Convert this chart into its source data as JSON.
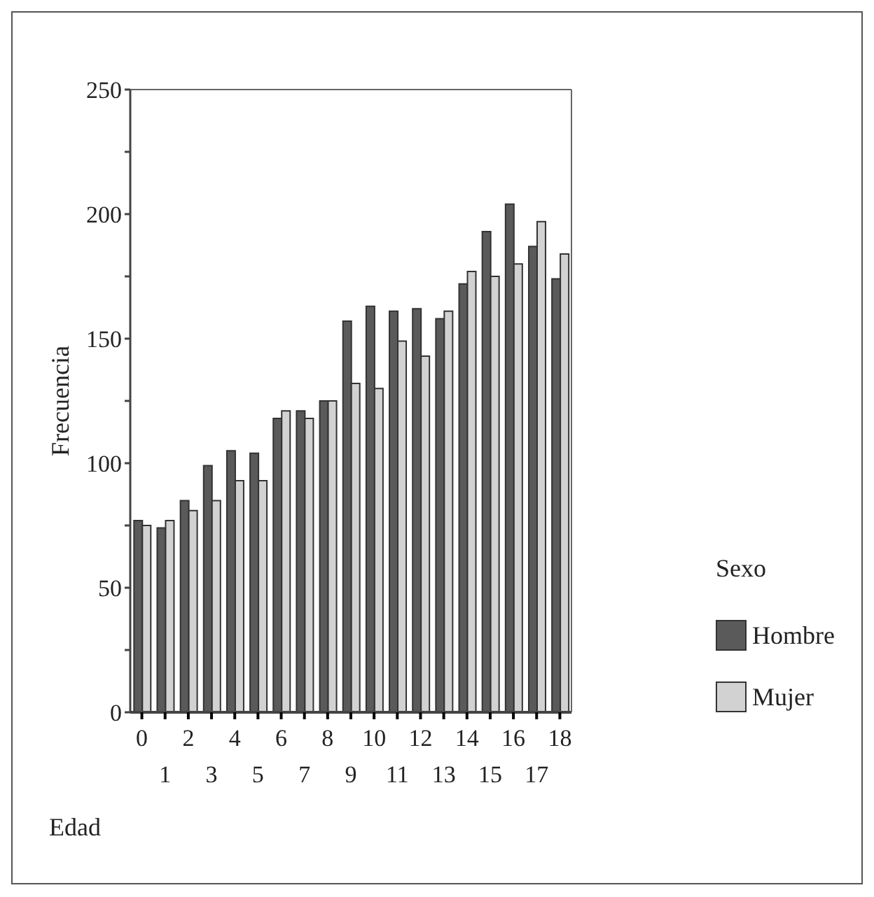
{
  "chart_data": {
    "type": "bar",
    "xlabel": "Edad",
    "ylabel": "Frecuencia",
    "legend_title": "Sexo",
    "categories": [
      "0",
      "1",
      "2",
      "3",
      "4",
      "5",
      "6",
      "7",
      "8",
      "9",
      "10",
      "11",
      "12",
      "13",
      "14",
      "15",
      "16",
      "17",
      "18"
    ],
    "series": [
      {
        "name": "Hombre",
        "color": "#5a5a5a",
        "values": [
          77,
          74,
          85,
          99,
          105,
          104,
          118,
          121,
          125,
          157,
          163,
          161,
          162,
          158,
          172,
          193,
          204,
          187,
          174
        ]
      },
      {
        "name": "Mujer",
        "color": "#d2d2d2",
        "values": [
          75,
          77,
          81,
          85,
          93,
          93,
          121,
          118,
          125,
          132,
          130,
          149,
          143,
          161,
          177,
          175,
          180,
          197,
          184
        ]
      }
    ],
    "ylim": [
      0,
      250
    ],
    "yticks": [
      0,
      {
        "value": 25,
        "label": null
      },
      50,
      {
        "value": 75,
        "label": null
      },
      100,
      {
        "value": 125,
        "label": null
      },
      150,
      {
        "value": 175,
        "label": null
      },
      200,
      {
        "value": 225,
        "label": null
      },
      250
    ],
    "grid": false,
    "legend": "right"
  }
}
